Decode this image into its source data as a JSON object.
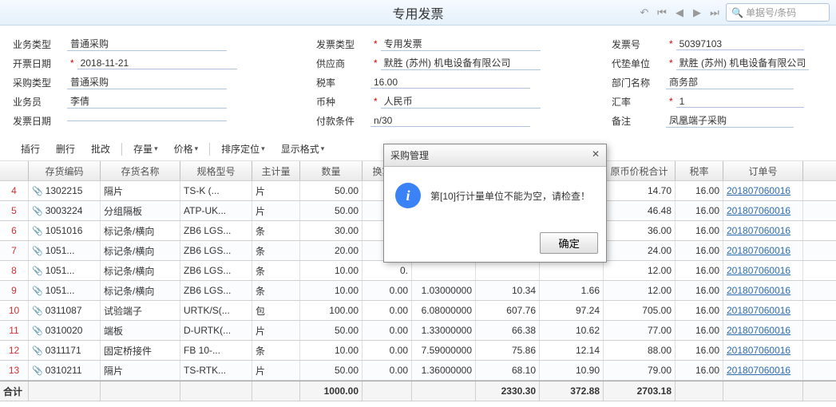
{
  "title": "专用发票",
  "search_placeholder": "单据号/条码",
  "form": {
    "col1": {
      "biz_type": {
        "label": "业务类型",
        "value": "普通采购"
      },
      "bill_date": {
        "label": "开票日期",
        "value": "2018-11-21",
        "required": true
      },
      "purchase_type": {
        "label": "采购类型",
        "value": "普通采购"
      },
      "clerk": {
        "label": "业务员",
        "value": "李倩"
      },
      "invoice_date": {
        "label": "发票日期",
        "value": ""
      }
    },
    "col2": {
      "invoice_type": {
        "label": "发票类型",
        "value": "专用发票",
        "required": true
      },
      "supplier": {
        "label": "供应商",
        "value": "默胜 (苏州) 机电设备有限公司",
        "required": true
      },
      "tax_rate": {
        "label": "税率",
        "value": "16.00"
      },
      "currency": {
        "label": "币种",
        "value": "人民币",
        "required": true
      },
      "pay_term": {
        "label": "付款条件",
        "value": "n/30"
      }
    },
    "col3": {
      "invoice_no": {
        "label": "发票号",
        "value": "50397103",
        "required": true
      },
      "advance_unit": {
        "label": "代垫单位",
        "value": "默胜 (苏州) 机电设备有限公司",
        "required": true
      },
      "dept": {
        "label": "部门名称",
        "value": "商务部"
      },
      "exchange": {
        "label": "汇率",
        "value": "1",
        "required": true
      },
      "remark": {
        "label": "备注",
        "value": "凤凰端子采购"
      }
    }
  },
  "toolbar": {
    "insert": "插行",
    "delete": "删行",
    "batch": "批改",
    "stock": "存量",
    "price": "价格",
    "sort": "排序定位",
    "display": "显示格式"
  },
  "columns": [
    "",
    "存货编码",
    "存货名称",
    "规格型号",
    "主计量",
    "数量",
    "换算率",
    "",
    "",
    "",
    "原币价税合计",
    "税率",
    "订单号"
  ],
  "rows": [
    {
      "idx": "4",
      "code": "1302215",
      "name": "隔片",
      "spec": "TS-K (...",
      "uom": "片",
      "qty": "50.00",
      "rate": "0.",
      "c7": "",
      "c8": "",
      "c9": "",
      "total": "14.70",
      "tax": "16.00",
      "order": "201807060016"
    },
    {
      "idx": "5",
      "code": "3003224",
      "name": "分组隔板",
      "spec": "ATP-UK...",
      "uom": "片",
      "qty": "50.00",
      "rate": "0.",
      "c7": "",
      "c8": "",
      "c9": "",
      "total": "46.48",
      "tax": "16.00",
      "order": "201807060016"
    },
    {
      "idx": "6",
      "code": "1051016",
      "name": "标记条/横向",
      "spec": "ZB6 LGS...",
      "uom": "条",
      "qty": "30.00",
      "rate": "0.",
      "c7": "",
      "c8": "",
      "c9": "",
      "total": "36.00",
      "tax": "16.00",
      "order": "201807060016"
    },
    {
      "idx": "7",
      "code": "1051...",
      "name": "标记条/横向",
      "spec": "ZB6 LGS...",
      "uom": "条",
      "qty": "20.00",
      "rate": "0.",
      "c7": "",
      "c8": "",
      "c9": "",
      "total": "24.00",
      "tax": "16.00",
      "order": "201807060016"
    },
    {
      "idx": "8",
      "code": "1051...",
      "name": "标记条/横向",
      "spec": "ZB6 LGS...",
      "uom": "条",
      "qty": "10.00",
      "rate": "0.",
      "c7": "",
      "c8": "",
      "c9": "",
      "total": "12.00",
      "tax": "16.00",
      "order": "201807060016"
    },
    {
      "idx": "9",
      "code": "1051...",
      "name": "标记条/横向",
      "spec": "ZB6 LGS...",
      "uom": "条",
      "qty": "10.00",
      "rate": "0.00",
      "c7": "1.03000000",
      "c8": "10.34",
      "c9": "1.66",
      "total": "12.00",
      "tax": "16.00",
      "order": "201807060016"
    },
    {
      "idx": "10",
      "code": "0311087",
      "name": "试验端子",
      "spec": "URTK/S(...",
      "uom": "包",
      "qty": "100.00",
      "rate": "0.00",
      "c7": "6.08000000",
      "c8": "607.76",
      "c9": "97.24",
      "total": "705.00",
      "tax": "16.00",
      "order": "201807060016"
    },
    {
      "idx": "11",
      "code": "0310020",
      "name": "端板",
      "spec": "D-URTK(...",
      "uom": "片",
      "qty": "50.00",
      "rate": "0.00",
      "c7": "1.33000000",
      "c8": "66.38",
      "c9": "10.62",
      "total": "77.00",
      "tax": "16.00",
      "order": "201807060016"
    },
    {
      "idx": "12",
      "code": "0311171",
      "name": "固定桥接件",
      "spec": "FB  10-...",
      "uom": "条",
      "qty": "10.00",
      "rate": "0.00",
      "c7": "7.59000000",
      "c8": "75.86",
      "c9": "12.14",
      "total": "88.00",
      "tax": "16.00",
      "order": "201807060016"
    },
    {
      "idx": "13",
      "code": "0310211",
      "name": "隔片",
      "spec": "TS-RTK...",
      "uom": "片",
      "qty": "50.00",
      "rate": "0.00",
      "c7": "1.36000000",
      "c8": "68.10",
      "c9": "10.90",
      "total": "79.00",
      "tax": "16.00",
      "order": "201807060016"
    }
  ],
  "totals": {
    "label": "合计",
    "qty": "1000.00",
    "c8": "2330.30",
    "c9": "372.88",
    "total": "2703.18"
  },
  "modal": {
    "title": "采购管理",
    "message": "第[10]行计量单位不能为空，请检查！",
    "ok": "确定"
  }
}
